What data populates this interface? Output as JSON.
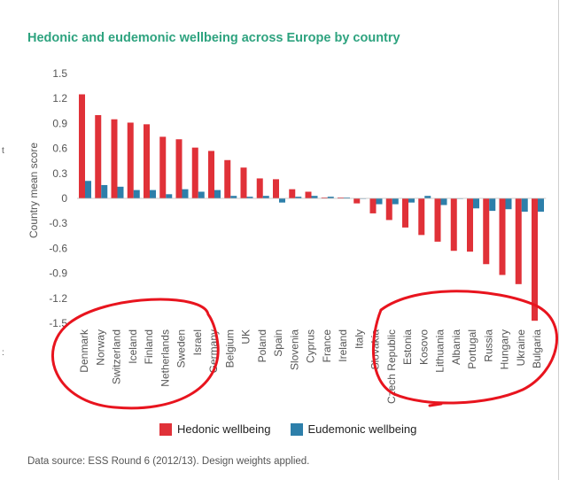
{
  "title": "Hedonic and eudemonic wellbeing across Europe by country",
  "source": "Data source: ESS Round 6 (2012/13). Design weights applied.",
  "edge_texts": [
    "t",
    ":"
  ],
  "colors": {
    "hedonic": "#e03138",
    "eudemonic": "#2d7faa",
    "annotation": "#e8141e",
    "title": "#2ea37f"
  },
  "chart_data": {
    "type": "bar",
    "title": "Hedonic and eudemonic wellbeing across Europe by country",
    "ylabel": "Country mean score",
    "xlabel": "",
    "ylim": [
      -1.5,
      1.5
    ],
    "yticks": [
      "1.5",
      "1.2",
      "0.9",
      "0.6",
      "0.3",
      "0",
      "-0.3",
      "-0.6",
      "-0.9",
      "-1.2",
      "-1.5"
    ],
    "grid": false,
    "legend_position": "bottom",
    "categories": [
      "Denmark",
      "Norway",
      "Switzerland",
      "Iceland",
      "Finland",
      "Netherlands",
      "Sweden",
      "Israel",
      "Germany",
      "Belgium",
      "UK",
      "Poland",
      "Spain",
      "Slovenia",
      "Cyprus",
      "France",
      "Ireland",
      "Italy",
      "Slovakia",
      "Czech Republic",
      "Estonia",
      "Kosovo",
      "Lithuania",
      "Albania",
      "Portugal",
      "Russia",
      "Hungary",
      "Ukraine",
      "Bulgaria"
    ],
    "series": [
      {
        "name": "Hedonic wellbeing",
        "values": [
          1.25,
          1.0,
          0.95,
          0.91,
          0.89,
          0.74,
          0.71,
          0.61,
          0.57,
          0.46,
          0.37,
          0.24,
          0.23,
          0.11,
          0.08,
          0.01,
          0.01,
          -0.06,
          -0.18,
          -0.26,
          -0.35,
          -0.44,
          -0.52,
          -0.63,
          -0.64,
          -0.79,
          -0.92,
          -1.03,
          -1.47
        ]
      },
      {
        "name": "Eudemonic wellbeing",
        "values": [
          0.21,
          0.16,
          0.14,
          0.1,
          0.1,
          0.05,
          0.11,
          0.08,
          0.1,
          0.03,
          0.02,
          0.03,
          -0.05,
          0.02,
          0.03,
          0.02,
          0.01,
          0.0,
          -0.07,
          -0.07,
          -0.05,
          0.03,
          -0.08,
          0.0,
          -0.12,
          -0.15,
          -0.13,
          -0.16,
          -0.16
        ]
      }
    ]
  }
}
